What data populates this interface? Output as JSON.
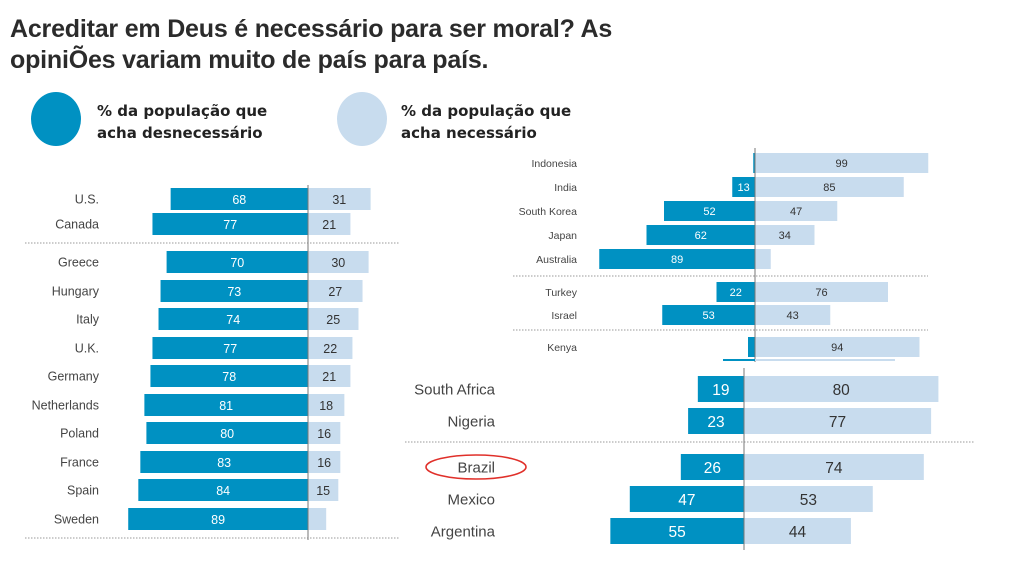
{
  "title_line1": "Acreditar em Deus é necessário para ser moral? As",
  "title_line2": "opiniÕes variam muito de país para país.",
  "legend": [
    {
      "line1": "% da população que",
      "line2": "acha desnecessário",
      "color": "#0091c2"
    },
    {
      "line1": "% da população que",
      "line2": "acha necessário",
      "color": "#c8dcee"
    }
  ],
  "colors": {
    "unnecessary": "#0091c2",
    "necessary": "#c8dcee",
    "highlight_circle": "#e0302a"
  },
  "chart_data": [
    {
      "type": "bar",
      "orientation": "diverging-horizontal",
      "categories": [
        "U.S.",
        "Canada",
        "Greece",
        "Hungary",
        "Italy",
        "U.K.",
        "Germany",
        "Netherlands",
        "Poland",
        "France",
        "Spain",
        "Sweden"
      ],
      "series": [
        {
          "name": "% da população que acha desnecessário",
          "values": [
            68,
            77,
            70,
            73,
            74,
            77,
            78,
            81,
            80,
            83,
            84,
            89
          ],
          "labels": [
            "68",
            "77",
            "70",
            "73",
            "74",
            "77",
            "78",
            "81",
            "80",
            "83",
            "84",
            "89"
          ]
        },
        {
          "name": "% da população que acha necessário",
          "values": [
            31,
            21,
            30,
            27,
            25,
            22,
            21,
            18,
            16,
            16,
            15,
            9
          ],
          "labels": [
            "31",
            "21",
            "30",
            "27",
            "25",
            "22",
            "21",
            "18",
            "16",
            "16",
            "15",
            ""
          ]
        }
      ],
      "groups_after": [
        2
      ]
    },
    {
      "type": "bar",
      "orientation": "diverging-horizontal",
      "categories": [
        "Indonesia",
        "India",
        "South Korea",
        "Japan",
        "Australia",
        "Turkey",
        "Israel",
        "Kenya"
      ],
      "series": [
        {
          "name": "% da população que acha desnecessário",
          "values": [
            1,
            13,
            52,
            62,
            89,
            22,
            53,
            4
          ],
          "labels": [
            "",
            "13",
            "52",
            "62",
            "89",
            "22",
            "53",
            ""
          ]
        },
        {
          "name": "% da população que acha necessário",
          "values": [
            99,
            85,
            47,
            34,
            9,
            76,
            43,
            94
          ],
          "labels": [
            "99",
            "85",
            "47",
            "34",
            "",
            "76",
            "43",
            "94"
          ]
        }
      ],
      "groups_after": [
        5,
        7
      ]
    },
    {
      "type": "bar",
      "orientation": "diverging-horizontal",
      "categories": [
        "South Africa",
        "Nigeria",
        "Brazil",
        "Mexico",
        "Argentina"
      ],
      "highlighted": "Brazil",
      "series": [
        {
          "name": "% da população que acha desnecessário",
          "values": [
            19,
            23,
            26,
            47,
            55
          ],
          "labels": [
            "19",
            "23",
            "26",
            "47",
            "55"
          ]
        },
        {
          "name": "% da população que acha necessário",
          "values": [
            80,
            77,
            74,
            53,
            44
          ],
          "labels": [
            "80",
            "77",
            "74",
            "53",
            "44"
          ]
        }
      ],
      "groups_after": [
        2
      ]
    }
  ]
}
